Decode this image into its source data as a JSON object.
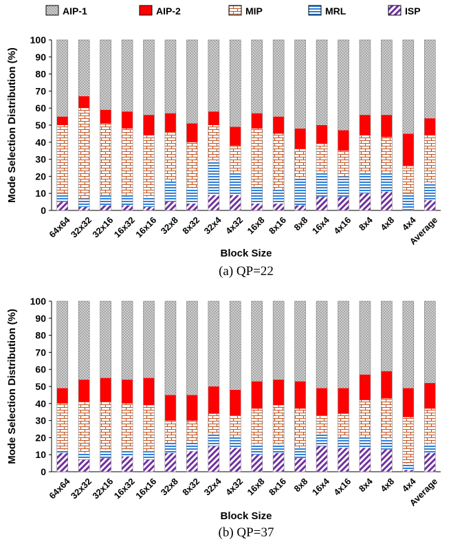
{
  "legend": {
    "items": [
      {
        "name": "AIP-1",
        "pattern": "dots",
        "color": "#bdbdbd"
      },
      {
        "name": "AIP-2",
        "pattern": "solid",
        "color": "#ff0000"
      },
      {
        "name": "MIP",
        "pattern": "brick",
        "color": "#c0501c"
      },
      {
        "name": "MRL",
        "pattern": "hlines",
        "color": "#2e7fd6"
      },
      {
        "name": "ISP",
        "pattern": "diag",
        "color": "#7030a0"
      }
    ]
  },
  "chart_data": [
    {
      "type": "bar",
      "stacked": true,
      "caption": "(a) QP=22",
      "xlabel": "Block Size",
      "ylabel": "Mode Selection Distribution (%)",
      "ylim": [
        0,
        100
      ],
      "yticks": [
        0,
        10,
        20,
        30,
        40,
        50,
        60,
        70,
        80,
        90,
        100
      ],
      "categories": [
        "64x64",
        "32x32",
        "32x16",
        "16x32",
        "16x16",
        "32x8",
        "8x32",
        "32x4",
        "4x32",
        "16x8",
        "8x16",
        "8x8",
        "16x4",
        "4x16",
        "8x4",
        "4x8",
        "4x4",
        "Average"
      ],
      "series": [
        {
          "name": "ISP",
          "values": [
            5,
            2,
            3,
            3,
            2,
            5,
            4,
            9,
            9,
            4,
            4,
            3,
            8,
            8,
            10,
            11,
            0,
            6
          ]
        },
        {
          "name": "MRL",
          "values": [
            5,
            5,
            6,
            6,
            6,
            12,
            9,
            20,
            13,
            10,
            8,
            16,
            14,
            12,
            12,
            11,
            10,
            10
          ]
        },
        {
          "name": "MIP",
          "values": [
            40,
            53,
            42,
            39,
            36,
            29,
            27,
            21,
            16,
            34,
            33,
            17,
            17,
            15,
            22,
            21,
            16,
            28
          ]
        },
        {
          "name": "AIP-2",
          "values": [
            5,
            7,
            8,
            10,
            12,
            11,
            11,
            8,
            11,
            9,
            10,
            12,
            11,
            12,
            12,
            13,
            19,
            10
          ]
        },
        {
          "name": "AIP-1",
          "values": [
            45,
            33,
            41,
            42,
            44,
            43,
            49,
            42,
            51,
            43,
            45,
            52,
            50,
            53,
            44,
            44,
            55,
            46
          ]
        }
      ]
    },
    {
      "type": "bar",
      "stacked": true,
      "caption": "(b) QP=37",
      "xlabel": "Block Size",
      "ylabel": "Mode Selection Distribution (%)",
      "ylim": [
        0,
        100
      ],
      "yticks": [
        0,
        10,
        20,
        30,
        40,
        50,
        60,
        70,
        80,
        90,
        100
      ],
      "categories": [
        "64x64",
        "32x32",
        "32x16",
        "16x32",
        "16x16",
        "32x8",
        "8x32",
        "32x4",
        "4x32",
        "16x8",
        "8x16",
        "8x8",
        "16x4",
        "4x16",
        "8x4",
        "4x8",
        "4x4",
        "Average"
      ],
      "series": [
        {
          "name": "ISP",
          "values": [
            11,
            7,
            8,
            9,
            7,
            11,
            12,
            15,
            14,
            10,
            11,
            8,
            15,
            14,
            14,
            13,
            1,
            11
          ]
        },
        {
          "name": "MRL",
          "values": [
            2,
            4,
            5,
            4,
            5,
            6,
            5,
            7,
            6,
            6,
            5,
            6,
            7,
            6,
            6,
            6,
            4,
            5
          ]
        },
        {
          "name": "MIP",
          "values": [
            27,
            30,
            28,
            27,
            27,
            13,
            13,
            12,
            13,
            21,
            23,
            23,
            11,
            14,
            22,
            24,
            27,
            21
          ]
        },
        {
          "name": "AIP-2",
          "values": [
            9,
            13,
            14,
            14,
            16,
            15,
            15,
            16,
            15,
            16,
            15,
            16,
            16,
            15,
            15,
            16,
            17,
            15
          ]
        },
        {
          "name": "AIP-1",
          "values": [
            51,
            46,
            45,
            46,
            45,
            55,
            55,
            50,
            52,
            47,
            46,
            47,
            51,
            51,
            43,
            41,
            51,
            48
          ]
        }
      ]
    }
  ]
}
